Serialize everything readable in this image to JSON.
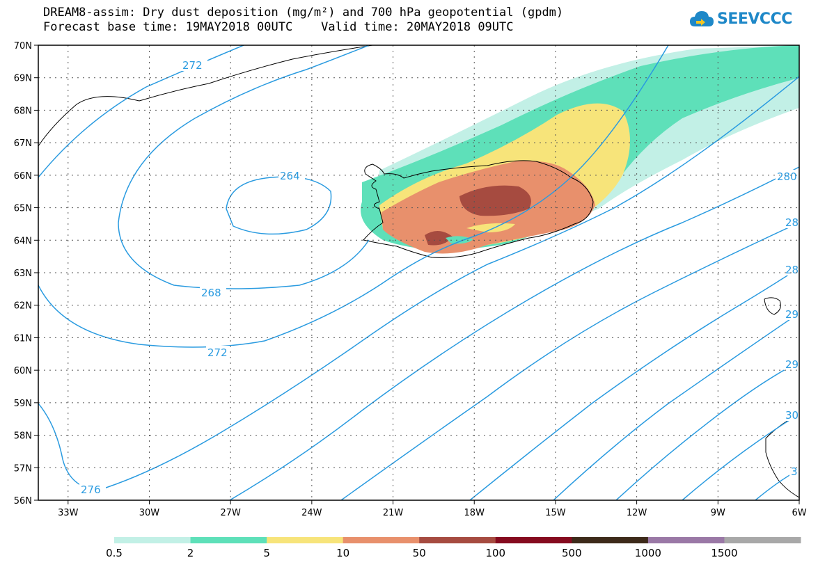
{
  "title": {
    "line1": "DREAM8-assim: Dry dust deposition (mg/m²) and 700 hPa geopotential (gpdm)",
    "line2": "Forecast base time: 19MAY2018 00UTC    Valid time: 20MAY2018 09UTC"
  },
  "logo": {
    "text": "SEEVCCC",
    "icon": "cloud-icon",
    "color": "#1e88c8"
  },
  "map": {
    "latitudes": [
      70,
      69,
      68,
      67,
      66,
      65,
      64,
      63,
      62,
      61,
      60,
      59,
      58,
      57,
      56
    ],
    "lat_labels": [
      "70N",
      "69N",
      "68N",
      "67N",
      "66N",
      "65N",
      "64N",
      "63N",
      "62N",
      "61N",
      "60N",
      "59N",
      "58N",
      "57N",
      "56N"
    ],
    "longitudes": [
      -33,
      -30,
      -27,
      -24,
      -21,
      -18,
      -15,
      -12,
      -9,
      -6
    ],
    "lon_labels": [
      "33W",
      "30W",
      "27W",
      "24W",
      "21W",
      "18W",
      "15W",
      "12W",
      "9W",
      "6W"
    ],
    "lon_range": [
      -34.1,
      -6
    ],
    "lat_range": [
      56,
      70
    ],
    "contour_color": "#2a9be0",
    "contour_labels": [
      "272",
      "264",
      "268",
      "272",
      "276",
      "280",
      "28",
      "28",
      "29",
      "29",
      "30",
      "3"
    ]
  },
  "colorbar": {
    "ticks": [
      "0.5",
      "2",
      "5",
      "10",
      "50",
      "100",
      "500",
      "1000",
      "1500"
    ],
    "colors": [
      "#c2f0e6",
      "#5ee0b9",
      "#f7e47a",
      "#e8906c",
      "#a64b40",
      "#850a1e",
      "#3d2a1a",
      "#9a78a6",
      "#a8a8a8"
    ]
  }
}
